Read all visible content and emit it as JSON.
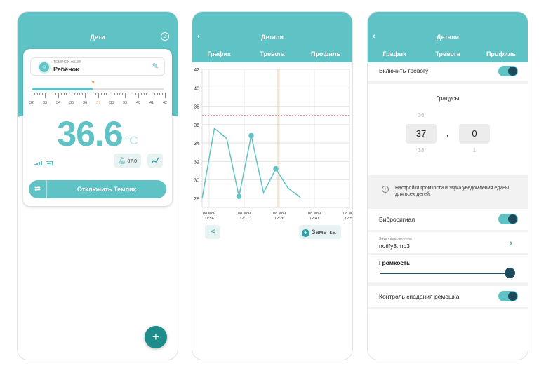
{
  "colors": {
    "accent": "#5fc3c6",
    "dark": "#1d4a5c",
    "fab": "#1f8c8c",
    "threshold": "#e57373",
    "cursor": "#f0a84a"
  },
  "screen1": {
    "title": "Дети",
    "help_icon": "question-icon",
    "device_id": "TEMPICK 08185",
    "device_name": "Ребёнок",
    "scale_labels": [
      "32",
      "33",
      "34",
      "35",
      "36",
      "37",
      "38",
      "39",
      "40",
      "41",
      "42"
    ],
    "scale_fill_fraction": 0.46,
    "temperature": "36.6",
    "unit": "°C",
    "alarm_value": "37.0",
    "disable_label": "Отключить Темпик",
    "fab_label": "+"
  },
  "screen2": {
    "title": "Детали",
    "tabs": [
      "График",
      "Тревога",
      "Профиль"
    ],
    "active_tab": 0,
    "chart_data": {
      "type": "line",
      "y_ticks": [
        "42",
        "40",
        "38",
        "36",
        "34",
        "32",
        "30",
        "28"
      ],
      "ylim": [
        27,
        42
      ],
      "threshold": 37,
      "x_tick_labels": [
        {
          "date": "08 июн",
          "time": "11:56"
        },
        {
          "date": "08 июн",
          "time": "12:11"
        },
        {
          "date": "08 июн",
          "time": "12:26"
        },
        {
          "date": "08 июн",
          "time": "12:41"
        },
        {
          "date": "08 июн",
          "time": "12:56"
        }
      ],
      "series": [
        {
          "values": [
            28.0,
            35.6,
            34.5,
            28.2,
            34.8,
            28.6,
            31.2,
            29.1,
            28.1
          ]
        }
      ],
      "highlighted_points": [
        3,
        4,
        6
      ]
    },
    "share_icon": "share-icon",
    "note_label": "Заметка"
  },
  "screen3": {
    "title": "Детали",
    "tabs": [
      "График",
      "Тревога",
      "Профиль"
    ],
    "active_tab": 1,
    "alarm_toggle_label": "Включить тревогу",
    "alarm_on": true,
    "degrees_title": "Градусы",
    "picker_int": {
      "above": "36",
      "value": "37",
      "below": "38"
    },
    "picker_sep": ",",
    "picker_frac": {
      "above": "",
      "value": "0",
      "below": "1"
    },
    "info_text": "Настройки громкости и звука уведомления едины для всех детей.",
    "vibration_label": "Вибросигнал",
    "vibration_on": true,
    "sound_caption": "Звук уведомления",
    "sound_value": "notify3.mp3",
    "volume_label": "Громкость",
    "volume_level": 1.0,
    "strap_label": "Контроль спадания ремешка",
    "strap_on": true
  }
}
